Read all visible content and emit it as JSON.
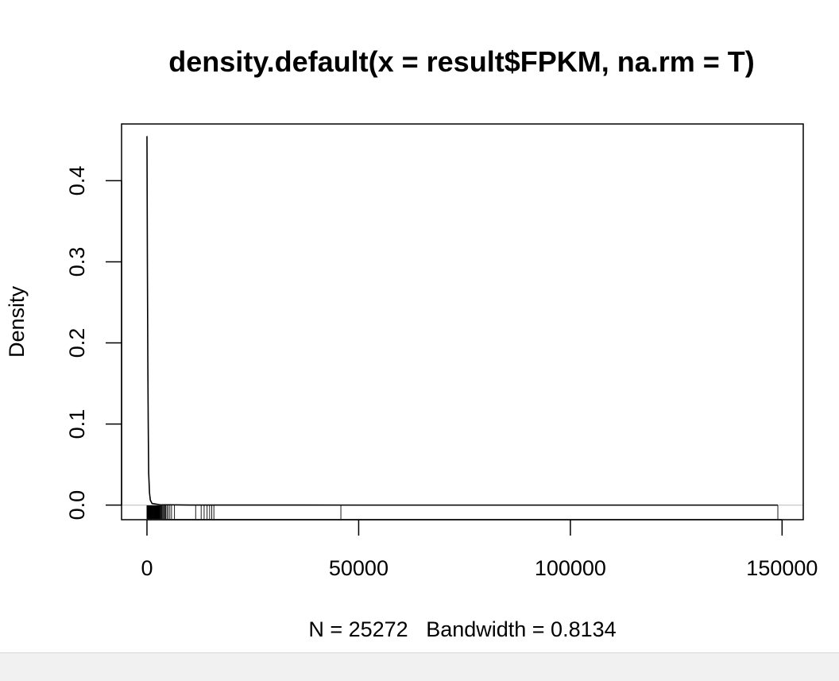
{
  "chart_data": {
    "type": "line",
    "title": "density.default(x = result$FPKM, na.rm = T)",
    "xlabel": "N = 25272   Bandwidth = 0.8134",
    "ylabel": "Density",
    "xlim": [
      -6000,
      155000
    ],
    "ylim": [
      -0.018,
      0.47
    ],
    "x_ticks": [
      0,
      50000,
      100000,
      150000
    ],
    "x_tick_labels": [
      "0",
      "50000",
      "100000",
      "150000"
    ],
    "y_ticks": [
      0.0,
      0.1,
      0.2,
      0.3,
      0.4
    ],
    "y_tick_labels": [
      "0.0",
      "0.1",
      "0.2",
      "0.3",
      "0.4"
    ],
    "zero_line": true,
    "series": [
      {
        "x": [
          0,
          100,
          200,
          300,
          400,
          600,
          800,
          1200,
          3000,
          10000,
          50000,
          100000,
          149000
        ],
        "y": [
          0.455,
          0.3,
          0.18,
          0.1,
          0.04,
          0.015,
          0.006,
          0.002,
          0.0005,
          0.0001,
          0.0,
          0.0,
          0.0
        ]
      }
    ],
    "rug": [
      0,
      50,
      120,
      200,
      300,
      400,
      500,
      600,
      700,
      800,
      900,
      1000,
      1100,
      1200,
      1300,
      1400,
      1500,
      1600,
      1700,
      1800,
      1900,
      2000,
      2100,
      2200,
      2300,
      2400,
      2500,
      2600,
      2700,
      2800,
      2900,
      3000,
      3150,
      3300,
      3450,
      3600,
      3800,
      4000,
      4200,
      4400,
      4700,
      5000,
      5400,
      5800,
      6500,
      11500,
      12800,
      13500,
      14200,
      14800,
      15300,
      15800,
      45800,
      149000
    ]
  }
}
